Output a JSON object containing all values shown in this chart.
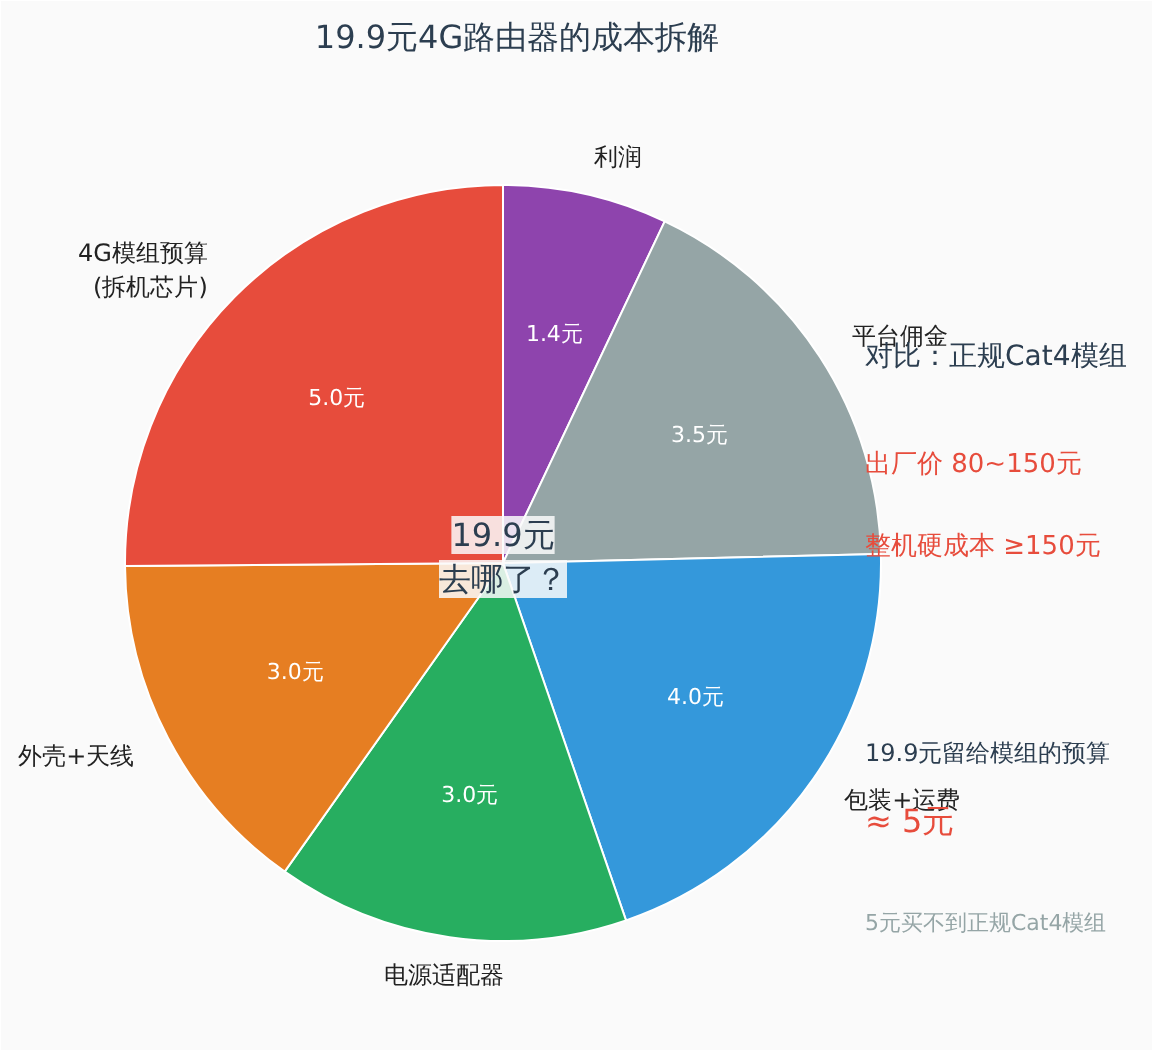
{
  "chart_data": {
    "type": "pie",
    "title": "19.9元4G路由器的成本拆解",
    "categories": [
      "利润",
      "平台佣金",
      "包装+运费",
      "电源适配器",
      "外壳+天线",
      "4G模组预算\n(拆机芯片)"
    ],
    "values": [
      1.4,
      3.5,
      4.0,
      3.0,
      3.0,
      5.0
    ],
    "colors": [
      "#8e44ad",
      "#95a5a6",
      "#3498db",
      "#27ae60",
      "#e67e22",
      "#e74c3c"
    ],
    "value_labels": [
      "1.4元",
      "3.5元",
      "4.0元",
      "3.0元",
      "3.0元",
      "5.0元"
    ],
    "annotations": [
      "19.9元",
      "去哪了？",
      "对比：正规Cat4模组",
      "出厂价  80~150元",
      "整机硬成本  ≥150元",
      "19.9元留给模组的预算",
      "≈ 5元",
      "5元买不到正规Cat4模组"
    ]
  }
}
